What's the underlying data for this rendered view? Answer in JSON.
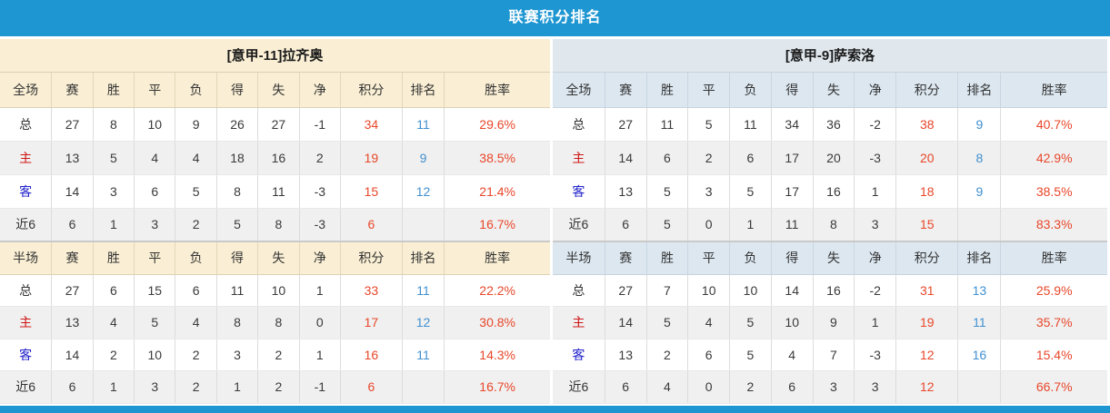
{
  "title": "联赛积分排名",
  "colors": {
    "bar_blue": "#1e96d2",
    "cream_panel": "#faefd4",
    "blue_panel": "#dce7f0",
    "row_alt": "#f0f0f0",
    "score_red": "#e8472a",
    "rank_blue": "#4090d0",
    "home_label_red": "#cf1717",
    "away_label_blue": "#2222cc"
  },
  "tables": [
    {
      "team_title": "[意甲-11]拉齐奥",
      "sections": [
        {
          "header": [
            "全场",
            "赛",
            "胜",
            "平",
            "负",
            "得",
            "失",
            "净",
            "积分",
            "排名",
            "胜率"
          ],
          "rows": [
            {
              "label": "总",
              "type": "total",
              "values": [
                "27",
                "8",
                "10",
                "9",
                "26",
                "27",
                "-1",
                "34",
                "11",
                "29.6%"
              ]
            },
            {
              "label": "主",
              "type": "home",
              "values": [
                "13",
                "5",
                "4",
                "4",
                "18",
                "16",
                "2",
                "19",
                "9",
                "38.5%"
              ]
            },
            {
              "label": "客",
              "type": "away",
              "values": [
                "14",
                "3",
                "6",
                "5",
                "8",
                "11",
                "-3",
                "15",
                "12",
                "21.4%"
              ]
            },
            {
              "label": "近6",
              "type": "last6",
              "values": [
                "6",
                "1",
                "3",
                "2",
                "5",
                "8",
                "-3",
                "6",
                "",
                "16.7%"
              ]
            }
          ]
        },
        {
          "header": [
            "半场",
            "赛",
            "胜",
            "平",
            "负",
            "得",
            "失",
            "净",
            "积分",
            "排名",
            "胜率"
          ],
          "rows": [
            {
              "label": "总",
              "type": "total",
              "values": [
                "27",
                "6",
                "15",
                "6",
                "11",
                "10",
                "1",
                "33",
                "11",
                "22.2%"
              ]
            },
            {
              "label": "主",
              "type": "home",
              "values": [
                "13",
                "4",
                "5",
                "4",
                "8",
                "8",
                "0",
                "17",
                "12",
                "30.8%"
              ]
            },
            {
              "label": "客",
              "type": "away",
              "values": [
                "14",
                "2",
                "10",
                "2",
                "3",
                "2",
                "1",
                "16",
                "11",
                "14.3%"
              ]
            },
            {
              "label": "近6",
              "type": "last6",
              "values": [
                "6",
                "1",
                "3",
                "2",
                "1",
                "2",
                "-1",
                "6",
                "",
                "16.7%"
              ]
            }
          ]
        }
      ]
    },
    {
      "team_title": "[意甲-9]萨索洛",
      "sections": [
        {
          "header": [
            "全场",
            "赛",
            "胜",
            "平",
            "负",
            "得",
            "失",
            "净",
            "积分",
            "排名",
            "胜率"
          ],
          "rows": [
            {
              "label": "总",
              "type": "total",
              "values": [
                "27",
                "11",
                "5",
                "11",
                "34",
                "36",
                "-2",
                "38",
                "9",
                "40.7%"
              ]
            },
            {
              "label": "主",
              "type": "home",
              "values": [
                "14",
                "6",
                "2",
                "6",
                "17",
                "20",
                "-3",
                "20",
                "8",
                "42.9%"
              ]
            },
            {
              "label": "客",
              "type": "away",
              "values": [
                "13",
                "5",
                "3",
                "5",
                "17",
                "16",
                "1",
                "18",
                "9",
                "38.5%"
              ]
            },
            {
              "label": "近6",
              "type": "last6",
              "values": [
                "6",
                "5",
                "0",
                "1",
                "11",
                "8",
                "3",
                "15",
                "",
                "83.3%"
              ]
            }
          ]
        },
        {
          "header": [
            "半场",
            "赛",
            "胜",
            "平",
            "负",
            "得",
            "失",
            "净",
            "积分",
            "排名",
            "胜率"
          ],
          "rows": [
            {
              "label": "总",
              "type": "total",
              "values": [
                "27",
                "7",
                "10",
                "10",
                "14",
                "16",
                "-2",
                "31",
                "13",
                "25.9%"
              ]
            },
            {
              "label": "主",
              "type": "home",
              "values": [
                "14",
                "5",
                "4",
                "5",
                "10",
                "9",
                "1",
                "19",
                "11",
                "35.7%"
              ]
            },
            {
              "label": "客",
              "type": "away",
              "values": [
                "13",
                "2",
                "6",
                "5",
                "4",
                "7",
                "-3",
                "12",
                "16",
                "15.4%"
              ]
            },
            {
              "label": "近6",
              "type": "last6",
              "values": [
                "6",
                "4",
                "0",
                "2",
                "6",
                "3",
                "3",
                "12",
                "",
                "66.7%"
              ]
            }
          ]
        }
      ]
    }
  ]
}
